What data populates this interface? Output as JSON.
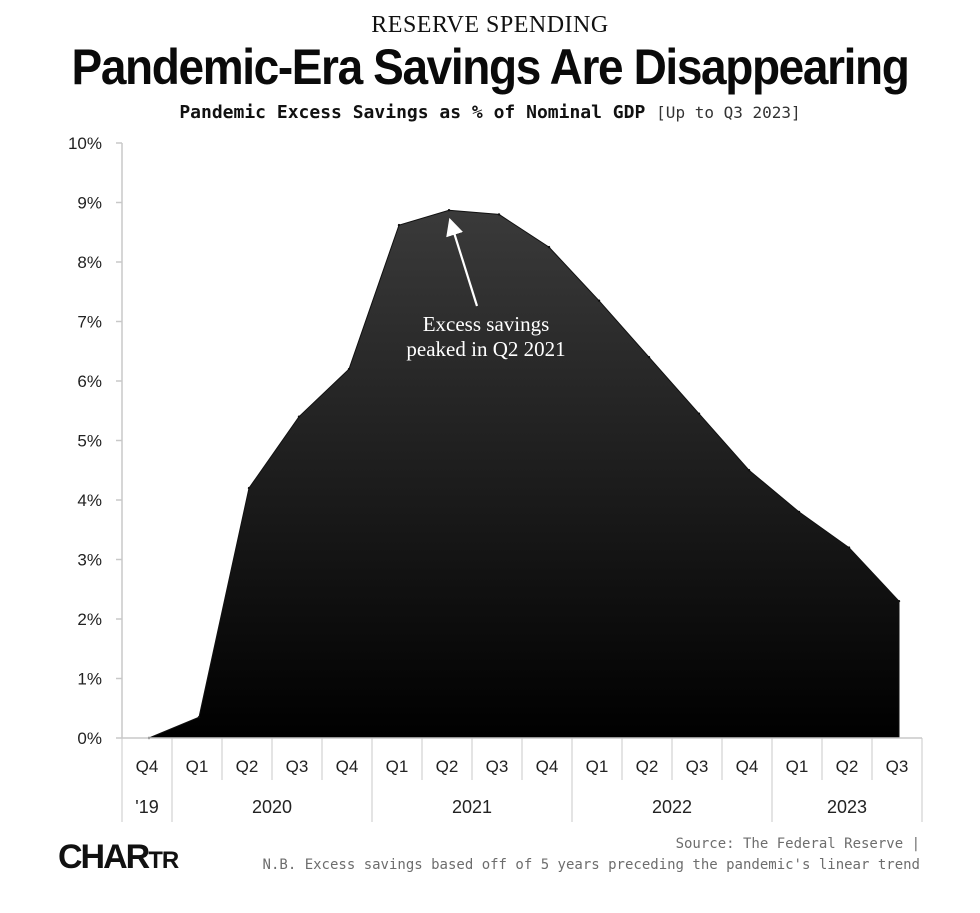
{
  "header": {
    "kicker": "RESERVE SPENDING",
    "title": "Pandemic-Era Savings Are Disappearing",
    "subtitle": "Pandemic Excess Savings as % of Nominal GDP",
    "subtitle_note": "[Up to Q3 2023]"
  },
  "footer": {
    "source": "Source: The Federal Reserve |",
    "note": "N.B. Excess savings based off of 5 years preceding the pandemic's linear trend",
    "logo_main": "CHAR",
    "logo_tail": "TR"
  },
  "chart_data": {
    "type": "area",
    "title": "Pandemic Excess Savings as % of Nominal GDP",
    "categories": [
      "Q4",
      "Q1",
      "Q2",
      "Q3",
      "Q4",
      "Q1",
      "Q2",
      "Q3",
      "Q4",
      "Q1",
      "Q2",
      "Q3",
      "Q4",
      "Q1",
      "Q2",
      "Q3"
    ],
    "year_groups": [
      {
        "label": "'19",
        "count": 1
      },
      {
        "label": "2020",
        "count": 4
      },
      {
        "label": "2021",
        "count": 4
      },
      {
        "label": "2022",
        "count": 4
      },
      {
        "label": "2023",
        "count": 3
      }
    ],
    "series": [
      {
        "values": [
          0.0,
          0.35,
          4.2,
          5.4,
          6.2,
          8.62,
          8.87,
          8.8,
          8.25,
          7.35,
          6.4,
          5.45,
          4.5,
          3.8,
          3.2,
          2.3
        ]
      }
    ],
    "yticks": [
      "0%",
      "1%",
      "2%",
      "3%",
      "4%",
      "5%",
      "6%",
      "7%",
      "8%",
      "9%",
      "10%"
    ],
    "ylim": [
      0,
      10
    ],
    "grid": false,
    "annotation": {
      "lines": [
        "Excess savings",
        "peaked in Q2 2021"
      ],
      "target_index": 6
    },
    "colors": {
      "fill_top": "#3a3a3a",
      "fill_bottom": "#000000",
      "axis": "#c8c8c8",
      "text": "#222222"
    }
  }
}
